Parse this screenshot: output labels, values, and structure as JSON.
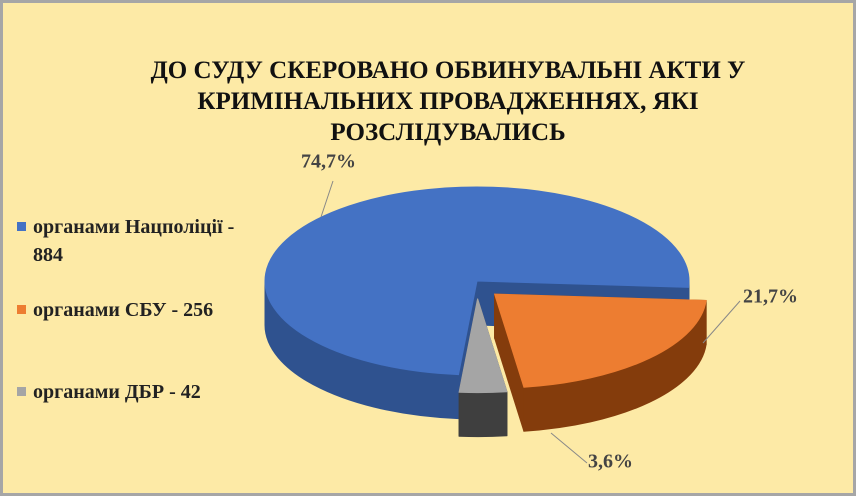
{
  "chart_data": {
    "type": "pie",
    "title": "ДО СУДУ СКЕРОВАНО ОБВИНУВАЛЬНІ АКТИ У КРИМІНАЛЬНИХ ПРОВАДЖЕННЯХ, ЯКІ РОЗСЛІДУВАЛИСЬ",
    "categories": [
      "органами Нацполіції - 884",
      "органами СБУ - 256",
      "органами ДБР - 42"
    ],
    "values": [
      74.7,
      21.7,
      3.6
    ],
    "value_labels": [
      "74,7%",
      "21,7%",
      "3,6%"
    ],
    "colors": [
      "#4472c4",
      "#ed7d31",
      "#a5a5a5"
    ],
    "legend": "left"
  }
}
